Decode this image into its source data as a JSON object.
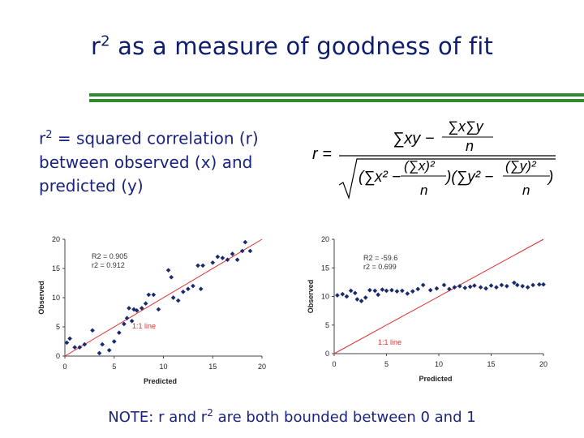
{
  "slide": {
    "title_prefix": "r",
    "title_sup": "2",
    "title_rest": " as  a measure of goodness of fit",
    "definition": {
      "prefix": "r",
      "sup": "2",
      "line1_rest": " = squared correlation (r)",
      "line2": "between observed (x) and",
      "line3": "predicted (y)"
    },
    "note": {
      "text1": "NOTE: r and r",
      "sup": "2",
      "text2": " are both bounded between 0 and 1"
    },
    "colors": {
      "title": "#0f1d6e",
      "rule": "#2e8b2e",
      "points": "#1a2a6c",
      "fit_line": "#e03030"
    }
  },
  "formula": {
    "lhs": "r =",
    "num_left": "∑xy −",
    "num_frac_top": "∑x∑y",
    "num_frac_bot": "n",
    "den_part1": "(∑x² −",
    "den_frac1_top": "(∑x)²",
    "den_frac1_bot": "n",
    "den_part2": ")(∑y² −",
    "den_frac2_top": "(∑y)²",
    "den_frac2_bot": "n",
    "den_close": ")"
  },
  "chart_data": [
    {
      "type": "scatter",
      "xlabel": "Predicted",
      "ylabel": "Observed",
      "xlim": [
        0,
        20
      ],
      "ylim": [
        0,
        20
      ],
      "xticks": [
        "0",
        "5",
        "10",
        "15",
        "20"
      ],
      "yticks": [
        "0",
        "5",
        "10",
        "15",
        "20"
      ],
      "annotations": [
        "R2 = 0.905",
        "r2  = 0.912"
      ],
      "line_label": "1:1 line",
      "points": [
        [
          0.2,
          2.3
        ],
        [
          0.5,
          3.0
        ],
        [
          1.0,
          1.5
        ],
        [
          1.5,
          1.5
        ],
        [
          2.0,
          2.0
        ],
        [
          2.8,
          4.4
        ],
        [
          3.5,
          0.5
        ],
        [
          3.8,
          2.0
        ],
        [
          4.5,
          1.0
        ],
        [
          5.0,
          2.5
        ],
        [
          5.5,
          4.0
        ],
        [
          6.0,
          5.5
        ],
        [
          6.3,
          6.5
        ],
        [
          6.8,
          6.0
        ],
        [
          7.3,
          7.8
        ],
        [
          7.8,
          8.2
        ],
        [
          6.5,
          8.2
        ],
        [
          7.0,
          8.0
        ],
        [
          8.2,
          9.0
        ],
        [
          8.5,
          10.5
        ],
        [
          9.0,
          10.5
        ],
        [
          9.5,
          8.0
        ],
        [
          10.5,
          14.7
        ],
        [
          10.8,
          13.5
        ],
        [
          11.0,
          10.0
        ],
        [
          11.5,
          9.5
        ],
        [
          12.0,
          11.0
        ],
        [
          12.5,
          11.5
        ],
        [
          13.0,
          12.0
        ],
        [
          13.8,
          11.5
        ],
        [
          13.5,
          15.5
        ],
        [
          14.0,
          15.5
        ],
        [
          15.0,
          16.0
        ],
        [
          15.5,
          17.0
        ],
        [
          16.0,
          16.8
        ],
        [
          16.5,
          16.5
        ],
        [
          17.0,
          17.5
        ],
        [
          17.5,
          16.5
        ],
        [
          18.0,
          18.0
        ],
        [
          18.3,
          19.5
        ],
        [
          18.8,
          18.0
        ]
      ]
    },
    {
      "type": "scatter",
      "xlabel": "Predicted",
      "ylabel": "Observed",
      "xlim": [
        0,
        20
      ],
      "ylim": [
        0,
        20
      ],
      "xticks": [
        "0",
        "5",
        "10",
        "15",
        "20"
      ],
      "yticks": [
        "0",
        "5",
        "10",
        "15",
        "20"
      ],
      "annotations": [
        "R2 = -59.6",
        "r2 = 0.699"
      ],
      "line_label": "1:1 line",
      "points": [
        [
          0.3,
          10.2
        ],
        [
          0.8,
          10.4
        ],
        [
          1.2,
          10.0
        ],
        [
          1.6,
          11.0
        ],
        [
          2.0,
          10.6
        ],
        [
          2.2,
          9.5
        ],
        [
          2.6,
          9.2
        ],
        [
          3.0,
          9.8
        ],
        [
          3.4,
          11.1
        ],
        [
          3.9,
          11.0
        ],
        [
          4.2,
          10.3
        ],
        [
          4.6,
          11.2
        ],
        [
          5.0,
          11.0
        ],
        [
          5.5,
          11.1
        ],
        [
          6.0,
          10.9
        ],
        [
          6.5,
          11.0
        ],
        [
          7.0,
          10.5
        ],
        [
          7.5,
          10.9
        ],
        [
          8.0,
          11.3
        ],
        [
          8.5,
          12.0
        ],
        [
          9.2,
          11.1
        ],
        [
          9.8,
          11.4
        ],
        [
          10.5,
          12.0
        ],
        [
          11.0,
          11.3
        ],
        [
          11.5,
          11.6
        ],
        [
          12.0,
          11.8
        ],
        [
          12.5,
          11.5
        ],
        [
          13.0,
          11.7
        ],
        [
          13.4,
          11.9
        ],
        [
          14.0,
          11.6
        ],
        [
          14.5,
          11.4
        ],
        [
          15.0,
          11.9
        ],
        [
          15.5,
          11.6
        ],
        [
          16.0,
          12.0
        ],
        [
          16.5,
          11.8
        ],
        [
          17.2,
          12.4
        ],
        [
          17.5,
          12.0
        ],
        [
          18.0,
          11.8
        ],
        [
          18.5,
          11.6
        ],
        [
          19.0,
          12.0
        ],
        [
          19.6,
          12.1
        ],
        [
          20.0,
          12.1
        ]
      ]
    }
  ]
}
